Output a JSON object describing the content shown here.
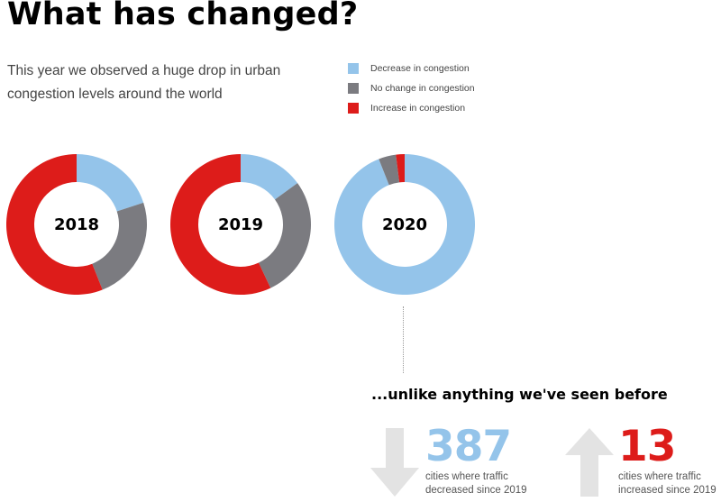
{
  "title": "What has changed?",
  "subtitle": "This year we observed a huge drop in urban congestion levels around the world",
  "colors": {
    "decrease": "#94c4ea",
    "no_change": "#7b7b80",
    "increase": "#dd1c1a",
    "arrow": "#e3e3e3"
  },
  "legend": [
    {
      "label": "Decrease in congestion",
      "color": "#94c4ea"
    },
    {
      "label": "No change in congestion",
      "color": "#7b7b80"
    },
    {
      "label": "Increase in congestion",
      "color": "#dd1c1a"
    }
  ],
  "chart_data": [
    {
      "type": "pie",
      "title": "2018",
      "categories": [
        "Decrease in congestion",
        "No change in congestion",
        "Increase in congestion"
      ],
      "values": [
        20,
        24,
        56
      ]
    },
    {
      "type": "pie",
      "title": "2019",
      "categories": [
        "Decrease in congestion",
        "No change in congestion",
        "Increase in congestion"
      ],
      "values": [
        15,
        28,
        57
      ]
    },
    {
      "type": "pie",
      "title": "2020",
      "categories": [
        "Decrease in congestion",
        "No change in congestion",
        "Increase in congestion"
      ],
      "values": [
        94,
        4,
        2
      ]
    }
  ],
  "headline": "...unlike anything we've seen before",
  "stats": {
    "decreased": {
      "number": "387",
      "description": "cities where traffic decreased since 2019",
      "arrow_icon": "down-arrow-icon"
    },
    "increased": {
      "number": "13",
      "description": "cities where traffic increased since 2019",
      "arrow_icon": "up-arrow-icon"
    }
  }
}
